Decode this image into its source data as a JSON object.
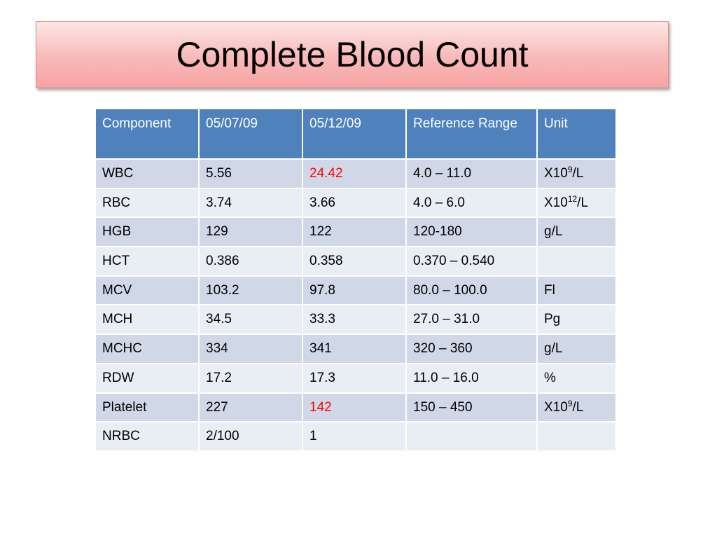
{
  "slide": {
    "title": "Complete Blood Count"
  },
  "table": {
    "headers": [
      "Component",
      "05/07/09",
      "05/12/09",
      "Reference Range",
      "Unit"
    ],
    "rows": [
      {
        "component": "WBC",
        "d1": "5.56",
        "d2": "24.42",
        "d2_flag": true,
        "range": "4.0 – 11.0",
        "unit_base": "X10",
        "unit_exp": "9",
        "unit_suffix": "/L"
      },
      {
        "component": "RBC",
        "d1": "3.74",
        "d2": "3.66",
        "d2_flag": false,
        "range": "4.0 – 6.0",
        "unit_base": "X10",
        "unit_exp": "12",
        "unit_suffix": "/L"
      },
      {
        "component": "HGB",
        "d1": "129",
        "d2": "122",
        "d2_flag": false,
        "range": "120-180",
        "unit_base": "g/L",
        "unit_exp": "",
        "unit_suffix": ""
      },
      {
        "component": "HCT",
        "d1": "0.386",
        "d2": "0.358",
        "d2_flag": false,
        "range": "0.370 – 0.540",
        "unit_base": "",
        "unit_exp": "",
        "unit_suffix": ""
      },
      {
        "component": "MCV",
        "d1": "103.2",
        "d2": "97.8",
        "d2_flag": false,
        "range": "80.0 – 100.0",
        "unit_base": "Fl",
        "unit_exp": "",
        "unit_suffix": ""
      },
      {
        "component": "MCH",
        "d1": "34.5",
        "d2": "33.3",
        "d2_flag": false,
        "range": "27.0 – 31.0",
        "unit_base": "Pg",
        "unit_exp": "",
        "unit_suffix": ""
      },
      {
        "component": "MCHC",
        "d1": "334",
        "d2": "341",
        "d2_flag": false,
        "range": "320 – 360",
        "unit_base": "g/L",
        "unit_exp": "",
        "unit_suffix": ""
      },
      {
        "component": "RDW",
        "d1": "17.2",
        "d2": "17.3",
        "d2_flag": false,
        "range": "11.0 – 16.0",
        "unit_base": "%",
        "unit_exp": "",
        "unit_suffix": ""
      },
      {
        "component": "Platelet",
        "d1": "227",
        "d2": "142",
        "d2_flag": true,
        "range": "150 – 450",
        "unit_base": "X10",
        "unit_exp": "9",
        "unit_suffix": "/L"
      },
      {
        "component": "NRBC",
        "d1": "2/100",
        "d2": "1",
        "d2_flag": false,
        "range": "",
        "unit_base": "",
        "unit_exp": "",
        "unit_suffix": ""
      }
    ]
  },
  "colors": {
    "header_bg": "#4f81bd",
    "row_odd": "#d0d8e8",
    "row_even": "#e9edf4",
    "flag": "#ff0000",
    "title_bg": "#f9b9b9"
  }
}
